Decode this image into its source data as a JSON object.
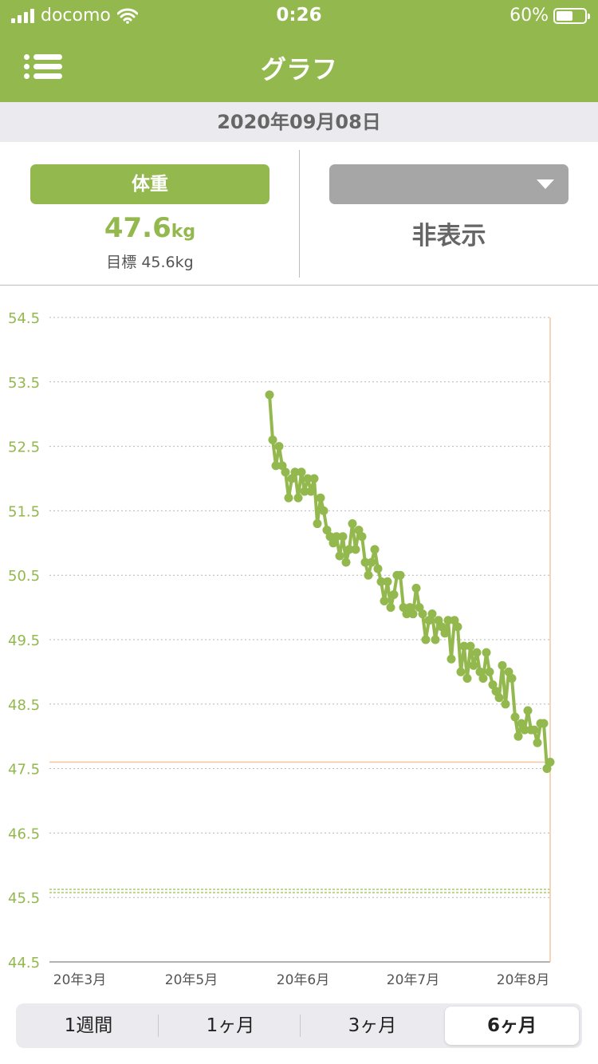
{
  "status_bar": {
    "carrier": "docomo",
    "time": "0:26",
    "battery": "60%",
    "battery_level": 0.6
  },
  "nav": {
    "title": "グラフ",
    "menu_icon": "menu-list-icon"
  },
  "date_label": "2020年09月08日",
  "summary": {
    "left_button": "体重",
    "value": "47.6",
    "unit": "kg",
    "goal_label": "目標 45.6kg",
    "dropdown_value": "",
    "right_label": "非表示"
  },
  "chart_data": {
    "type": "line",
    "title": "",
    "xlabel": "",
    "ylabel": "",
    "ylim": [
      44.5,
      54.5
    ],
    "y_ticks": [
      "54.5",
      "53.5",
      "52.5",
      "51.5",
      "50.5",
      "49.5",
      "48.5",
      "47.5",
      "46.5",
      "45.5",
      "44.5"
    ],
    "x_ticks": [
      "20年3月",
      "20年5月",
      "20年6月",
      "20年7月",
      "20年8月"
    ],
    "grid": true,
    "current_value": 47.6,
    "goal_value": 45.6,
    "series": [
      {
        "values": [
          53.3,
          52.6,
          52.2,
          52.5,
          52.2,
          52.1,
          51.7,
          52.0,
          52.1,
          51.7,
          52.1,
          51.8,
          52.0,
          51.8,
          52.0,
          51.3,
          51.7,
          51.5,
          51.2,
          51.1,
          51.0,
          51.1,
          50.8,
          51.1,
          50.7,
          50.9,
          51.3,
          50.9,
          51.2,
          51.1,
          50.7,
          50.5,
          50.7,
          50.9,
          50.6,
          50.4,
          50.1,
          50.4,
          50.0,
          50.2,
          50.5,
          50.5,
          50.0,
          49.9,
          50.0,
          49.9,
          50.3,
          50.0,
          49.9,
          49.5,
          49.8,
          49.9,
          49.5,
          49.8,
          49.7,
          49.6,
          49.8,
          49.2,
          49.8,
          49.7,
          49.0,
          49.4,
          48.9,
          49.4,
          49.1,
          49.3,
          49.0,
          48.9,
          49.3,
          49.0,
          48.8,
          48.7,
          48.6,
          49.1,
          48.5,
          49.0,
          48.9,
          48.3,
          48.0,
          48.2,
          48.1,
          48.4,
          48.1,
          48.1,
          47.9,
          48.2,
          48.2,
          47.5,
          47.6
        ]
      }
    ]
  },
  "range_tabs": [
    {
      "label": "1週間",
      "active": false
    },
    {
      "label": "1ヶ月",
      "active": false
    },
    {
      "label": "3ヶ月",
      "active": false
    },
    {
      "label": "6ヶ月",
      "active": true
    }
  ]
}
